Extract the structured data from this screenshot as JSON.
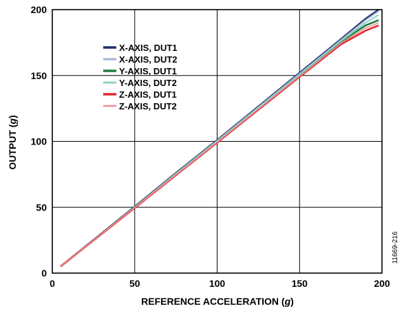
{
  "chart_data": {
    "type": "line",
    "xlabel": "REFERENCE ACCELERATION",
    "xlabel_unit": "g",
    "ylabel": "OUTPUT",
    "ylabel_unit": "g",
    "xlim": [
      0,
      200
    ],
    "ylim": [
      0,
      200
    ],
    "xticks": [
      0,
      50,
      100,
      150,
      200
    ],
    "yticks": [
      0,
      50,
      100,
      150,
      200
    ],
    "grid": true,
    "legend_position": "upper-left",
    "figure_id": "11669-216",
    "x": [
      5,
      25,
      50,
      75,
      100,
      125,
      150,
      175,
      190,
      198
    ],
    "series": [
      {
        "name": "X-AXIS, DUT1",
        "color": "#1f2d6b",
        "width": 2.6,
        "values": [
          5,
          25.2,
          50.5,
          76,
          101,
          126.5,
          152,
          177.5,
          193,
          200
        ]
      },
      {
        "name": "X-AXIS, DUT2",
        "color": "#9fb0d6",
        "width": 2.0,
        "values": [
          5,
          25.1,
          50.3,
          75.6,
          100.6,
          126,
          151.4,
          176.8,
          192,
          199
        ]
      },
      {
        "name": "Y-AXIS, DUT1",
        "color": "#1e7e3a",
        "width": 2.6,
        "values": [
          5,
          25,
          50.1,
          75.3,
          100.2,
          125.4,
          150.5,
          175.5,
          188,
          192
        ]
      },
      {
        "name": "Y-AXIS, DUT2",
        "color": "#8fd3c0",
        "width": 2.0,
        "values": [
          5,
          25,
          50.1,
          75.4,
          100.3,
          125.6,
          150.8,
          176,
          190,
          196
        ]
      },
      {
        "name": "Z-AXIS, DUT1",
        "color": "#e0282e",
        "width": 2.6,
        "values": [
          5,
          24.8,
          49.5,
          74.3,
          99,
          124,
          149,
          173.5,
          184,
          188
        ]
      },
      {
        "name": "Z-AXIS, DUT2",
        "color": "#f08a96",
        "width": 1.6,
        "values": [
          5,
          24.9,
          49.7,
          74.6,
          99.4,
          124.5,
          149.5,
          174.3,
          186,
          190
        ]
      }
    ]
  }
}
